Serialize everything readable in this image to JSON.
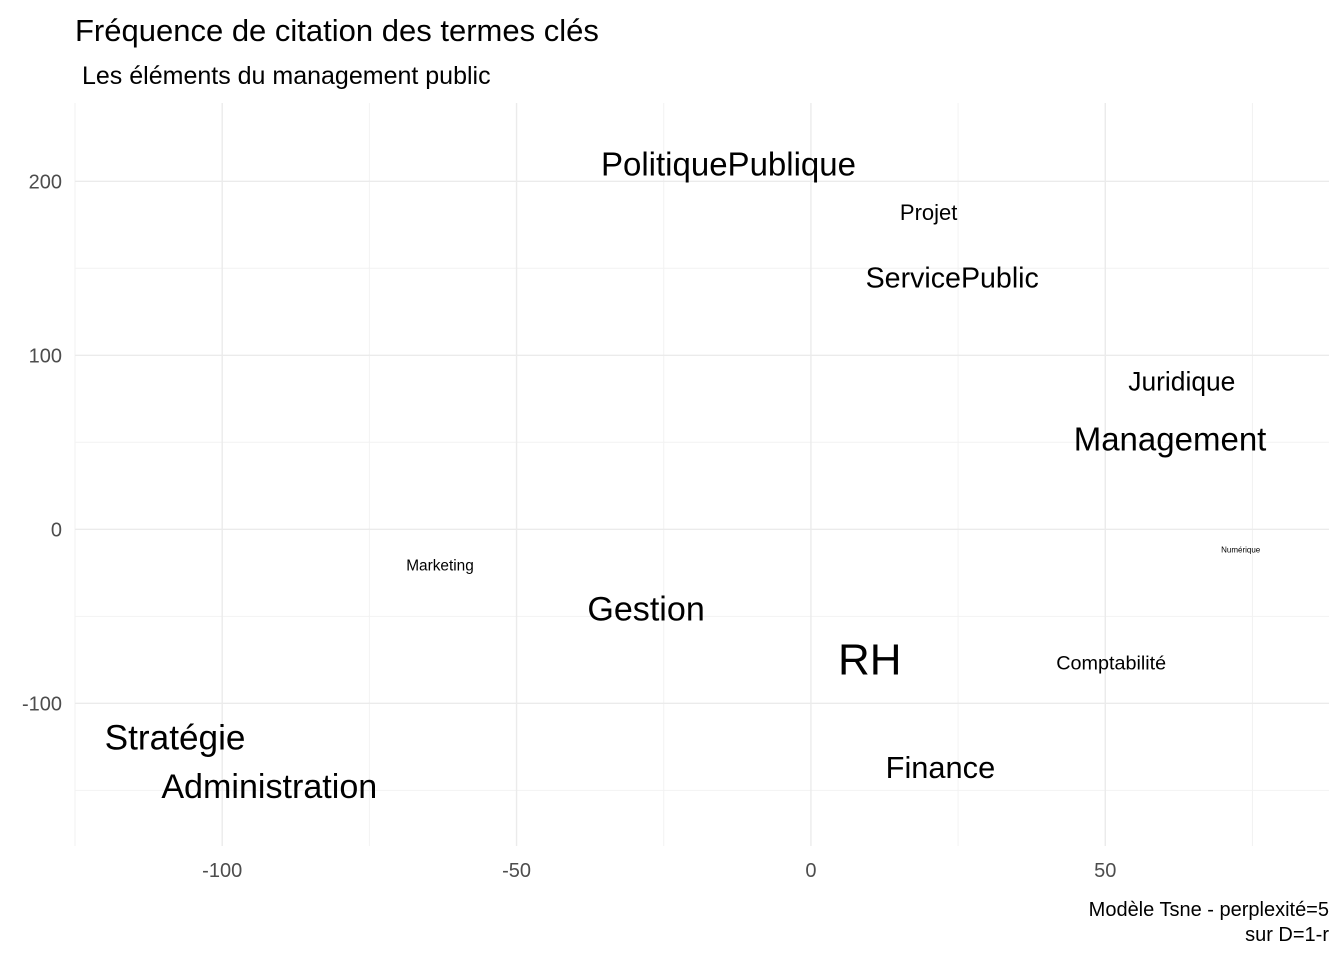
{
  "chart_data": {
    "type": "scatter",
    "title": "Fréquence de citation des termes clés",
    "subtitle": "Les éléments du management public",
    "caption_lines": [
      "Modèle Tsne - perplexité=5",
      "sur D=1-r"
    ],
    "xlabel": "",
    "ylabel": "",
    "xlim": [
      -125,
      88
    ],
    "ylim": [
      -182,
      245
    ],
    "x_ticks": [
      -100,
      -50,
      0,
      50
    ],
    "y_ticks": [
      -100,
      0,
      100,
      200
    ],
    "x_tick_labels": [
      "-100",
      "-50",
      "0",
      "50"
    ],
    "y_tick_labels": [
      "-100",
      "0",
      "100",
      "200"
    ],
    "grid": true,
    "legend": "none",
    "points": [
      {
        "label": "PolitiquePublique",
        "x": -14,
        "y": 210,
        "size": 3
      },
      {
        "label": "Projet",
        "x": 20,
        "y": 182,
        "size": 2
      },
      {
        "label": "ServicePublic",
        "x": 24,
        "y": 144,
        "size": 2.6
      },
      {
        "label": "Juridique",
        "x": 63,
        "y": 85,
        "size": 2.4
      },
      {
        "label": "Management",
        "x": 61,
        "y": 52,
        "size": 3
      },
      {
        "label": "Numérique",
        "x": 73,
        "y": -12,
        "size": 0.2
      },
      {
        "label": "Marketing",
        "x": -63,
        "y": -21,
        "size": 1.4
      },
      {
        "label": "Gestion",
        "x": -28,
        "y": -46,
        "size": 3.1
      },
      {
        "label": "RH",
        "x": 10,
        "y": -75,
        "size": 4
      },
      {
        "label": "Comptabilité",
        "x": 51,
        "y": -77,
        "size": 1.8
      },
      {
        "label": "Stratégie",
        "x": -108,
        "y": -120,
        "size": 3.2
      },
      {
        "label": "Administration",
        "x": -92,
        "y": -148,
        "size": 3.1
      },
      {
        "label": "Finance",
        "x": 22,
        "y": -137,
        "size": 2.8
      }
    ]
  }
}
